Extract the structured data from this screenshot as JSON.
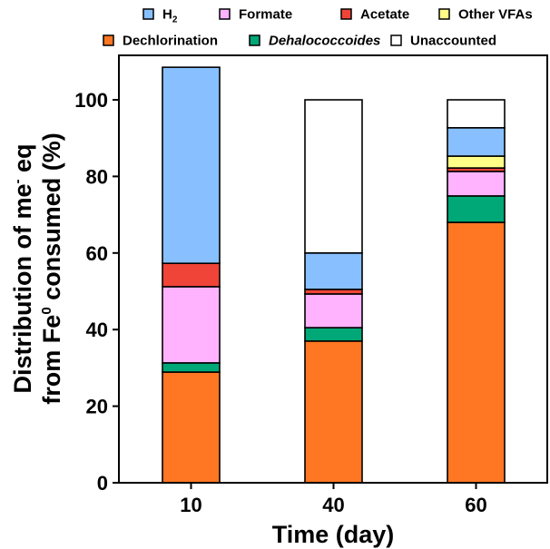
{
  "chart_data": {
    "type": "bar",
    "stacked": true,
    "title": "",
    "xlabel": "Time (day)",
    "ylabel_line1": "Distribution of me",
    "ylabel_line1_sup": "-",
    "ylabel_line1_end": " eq",
    "ylabel_line2": "from Fe",
    "ylabel_line2_sup": "0",
    "ylabel_line2_end": " consumed (%)",
    "categories": [
      "10",
      "40",
      "60"
    ],
    "ylim": [
      0,
      110
    ],
    "yticks": [
      0,
      20,
      40,
      60,
      80,
      100
    ],
    "grid": false,
    "legend_position": "top",
    "series": [
      {
        "name": "Dechlorination",
        "italic": false,
        "color": "#FF7722",
        "values": [
          28.9,
          37.0,
          68.0
        ]
      },
      {
        "name": "Dehalococcoides",
        "italic": true,
        "color": "#00A878",
        "values": [
          2.4,
          3.5,
          6.9
        ]
      },
      {
        "name": "Formate",
        "italic": false,
        "color": "#FFB3FF",
        "values": [
          19.9,
          8.8,
          6.4
        ]
      },
      {
        "name": "Acetate",
        "italic": false,
        "color": "#F04438",
        "values": [
          6.1,
          1.2,
          0.9
        ]
      },
      {
        "name": "Other VFAs",
        "italic": false,
        "color": "#FFFF88",
        "values": [
          0,
          0,
          3.1
        ]
      },
      {
        "name": "H2",
        "label_main": "H",
        "label_sub": "2",
        "italic": false,
        "color": "#88C0FF",
        "values": [
          51.2,
          9.5,
          7.4
        ]
      },
      {
        "name": "Unaccounted",
        "italic": false,
        "color": "#FFFFFF",
        "values": [
          0,
          40.0,
          7.3
        ]
      }
    ],
    "legend_rows": [
      [
        "H2",
        "Formate",
        "Acetate",
        "Other VFAs"
      ],
      [
        "Dechlorination",
        "Dehalococcoides",
        "Unaccounted"
      ]
    ]
  }
}
